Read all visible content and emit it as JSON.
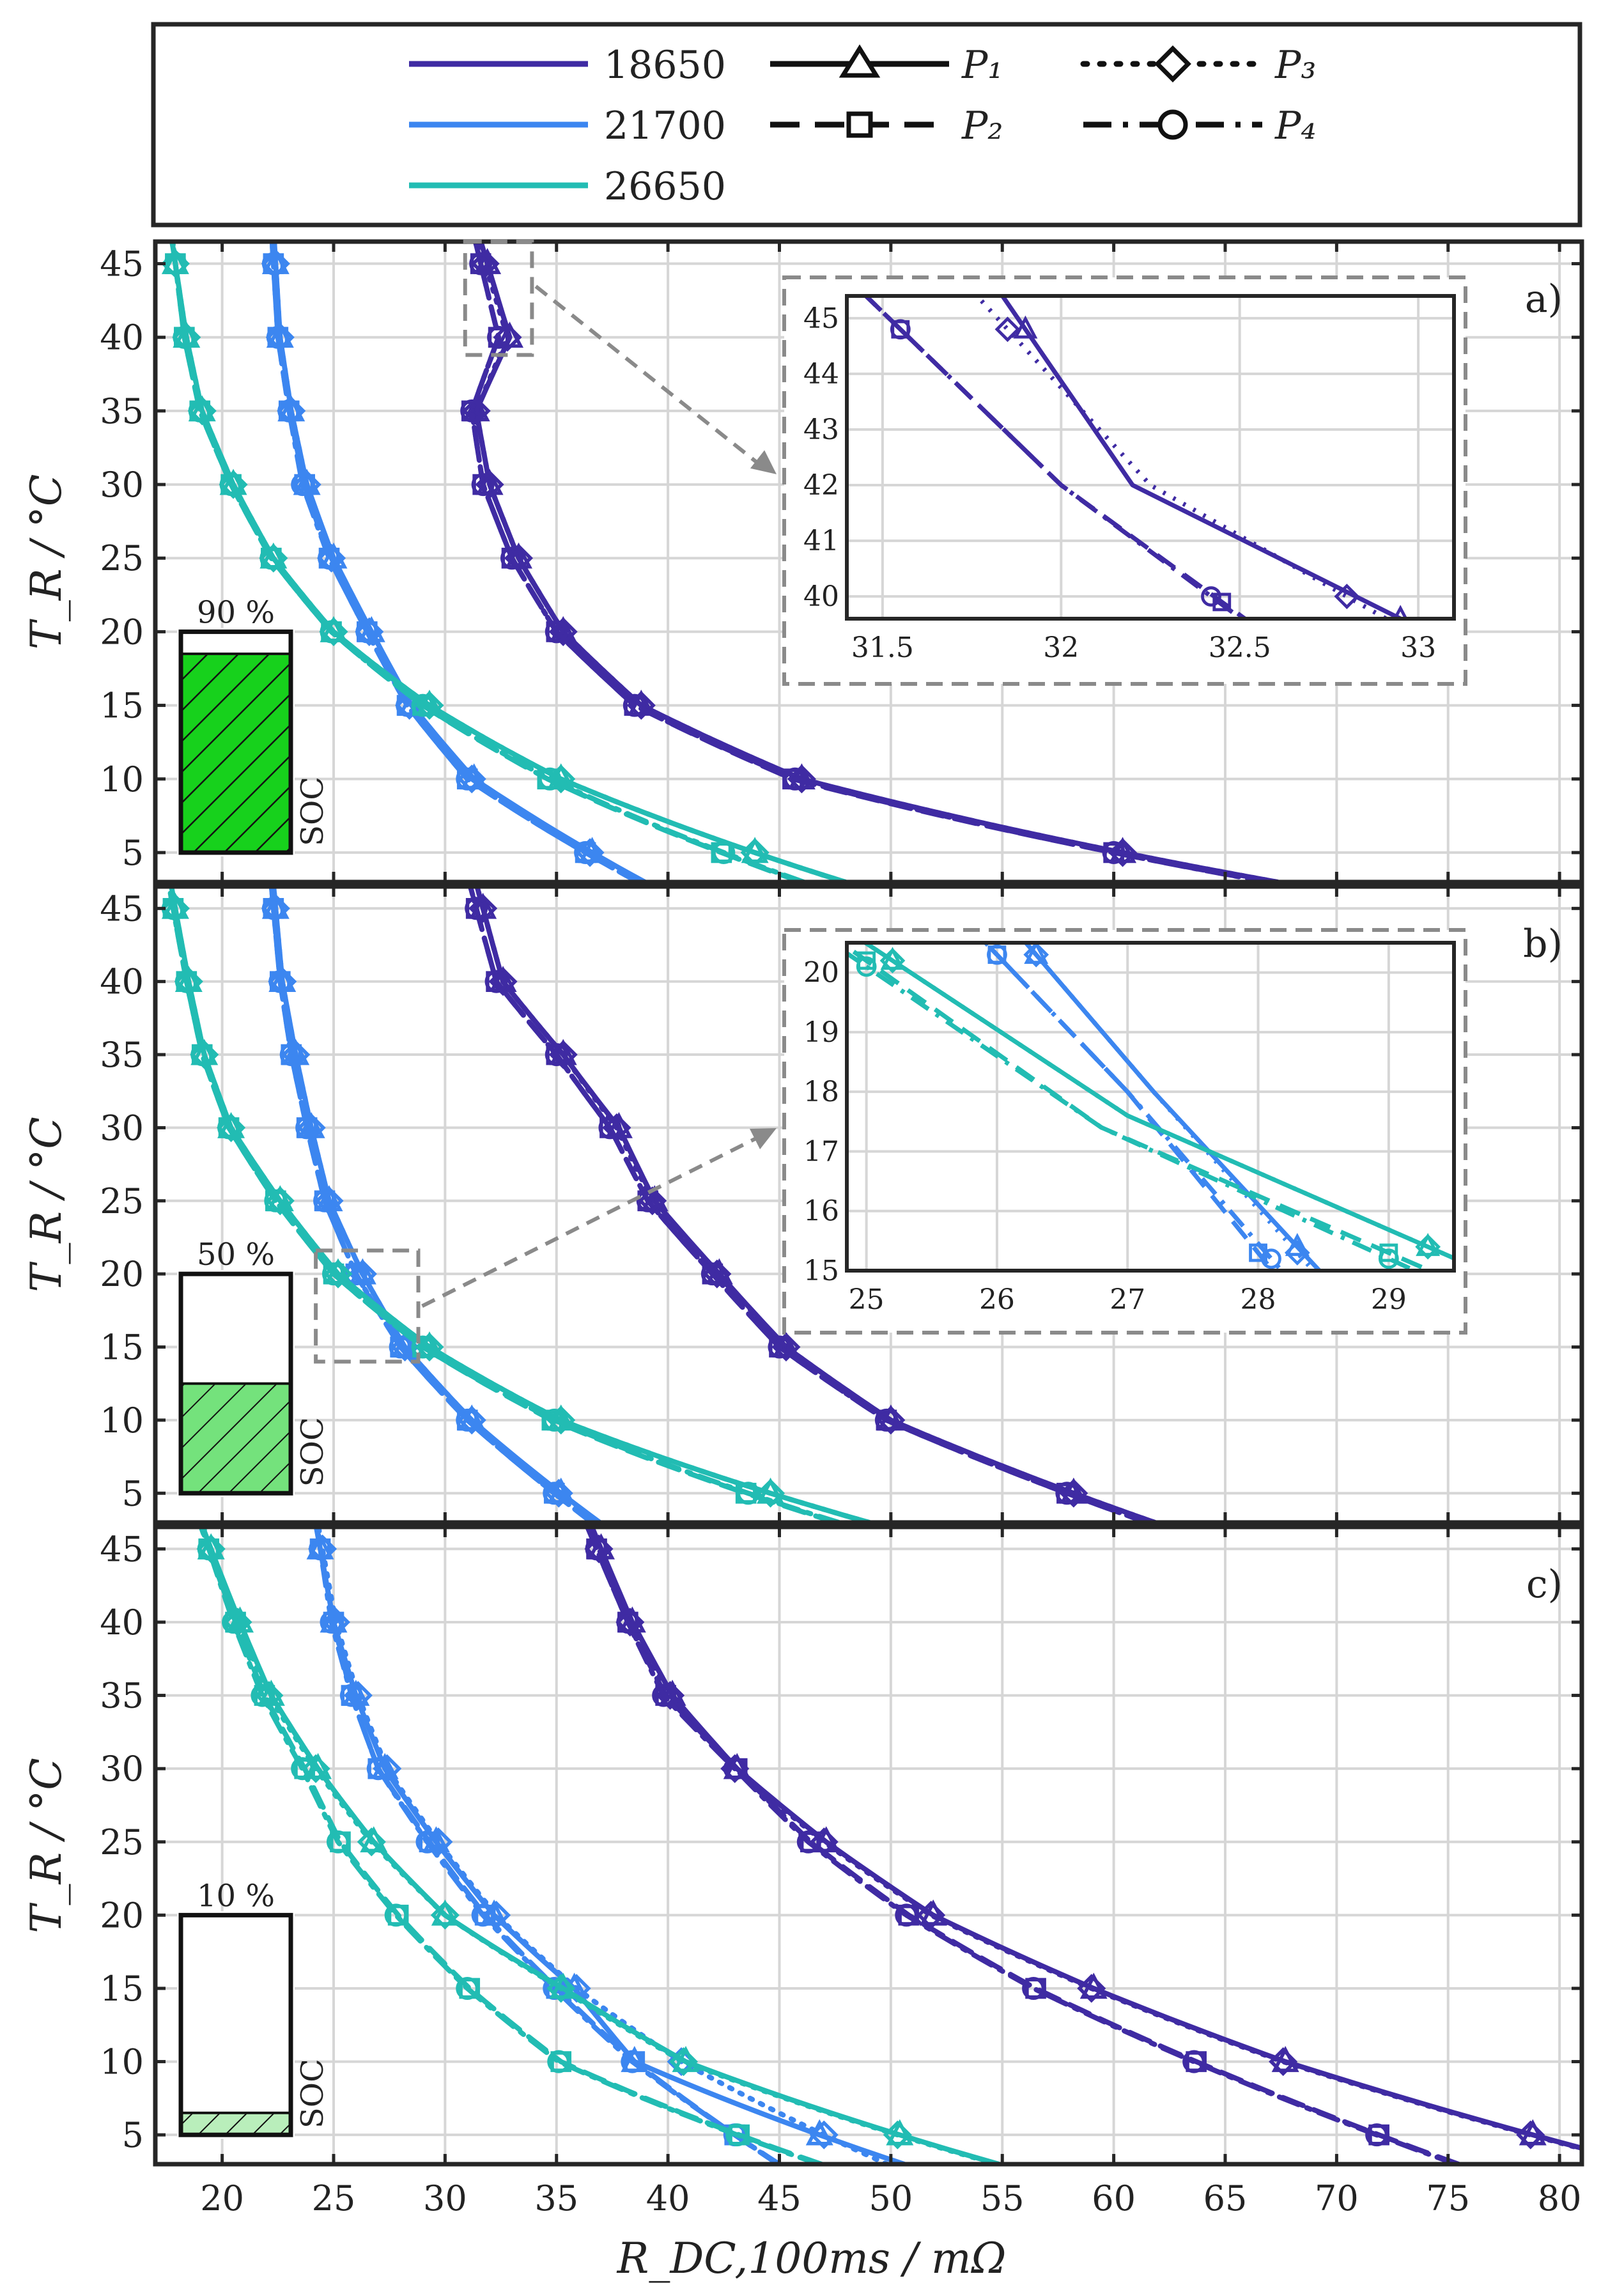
{
  "legend": {
    "cells": [
      {
        "name": "18650",
        "color": "#3f2ba3"
      },
      {
        "name": "21700",
        "color": "#3c86f0"
      },
      {
        "name": "26650",
        "color": "#22bcb3"
      }
    ],
    "profiles": [
      {
        "name": "P₁",
        "style": "solid",
        "marker": "triangle"
      },
      {
        "name": "P₂",
        "style": "dashed",
        "marker": "square"
      },
      {
        "name": "P₃",
        "style": "dotted",
        "marker": "diamond"
      },
      {
        "name": "P₄",
        "style": "dashdot",
        "marker": "circle"
      }
    ]
  },
  "axes": {
    "xlabel": "R_DC,100ms / mΩ",
    "ylabel": "T_R / °C",
    "xlim": [
      17,
      81
    ],
    "ylim": [
      3,
      46.5
    ],
    "xticks": [
      "20",
      "25",
      "30",
      "35",
      "40",
      "45",
      "50",
      "55",
      "60",
      "65",
      "70",
      "75",
      "80"
    ],
    "yticks": [
      "5",
      "10",
      "15",
      "20",
      "25",
      "30",
      "35",
      "40",
      "45"
    ]
  },
  "chart_data": [
    {
      "type": "line",
      "panel": "a)",
      "soc": "90 %",
      "soc_fraction": 0.9,
      "soc_label": "SOC",
      "temperatures": [
        5,
        10,
        15,
        20,
        25,
        30,
        35,
        40,
        45
      ],
      "series": [
        {
          "name": "18650",
          "profiles": {
            "P1": [
              60.4,
              46.0,
              38.8,
              35.3,
              33.3,
              32.0,
              31.4,
              32.9,
              31.9
            ],
            "P2": [
              60.0,
              45.6,
              38.5,
              35.0,
              33.0,
              31.7,
              31.2,
              32.4,
              31.6
            ],
            "P3": [
              60.4,
              46.0,
              38.8,
              35.3,
              33.3,
              32.0,
              31.4,
              32.8,
              31.8
            ],
            "P4": [
              60.0,
              45.7,
              38.5,
              35.0,
              33.0,
              31.7,
              31.2,
              32.4,
              31.6
            ]
          }
        },
        {
          "name": "21700",
          "profiles": {
            "P1": [
              36.6,
              31.3,
              28.5,
              26.7,
              25.0,
              23.8,
              23.1,
              22.6,
              22.4
            ],
            "P2": [
              36.3,
              31.0,
              28.3,
              26.5,
              24.8,
              23.7,
              23.0,
              22.5,
              22.3
            ],
            "P3": [
              36.5,
              31.2,
              28.4,
              26.6,
              24.9,
              23.8,
              23.1,
              22.6,
              22.4
            ],
            "P4": [
              36.3,
              31.0,
              28.3,
              26.5,
              24.8,
              23.6,
              23.0,
              22.5,
              22.3
            ]
          }
        },
        {
          "name": "26650",
          "profiles": {
            "P1": [
              43.9,
              35.2,
              29.3,
              25.0,
              22.3,
              20.5,
              19.1,
              18.4,
              17.9
            ],
            "P2": [
              42.4,
              34.6,
              29.0,
              24.9,
              22.2,
              20.4,
              19.0,
              18.3,
              17.9
            ],
            "P3": [
              43.9,
              35.2,
              29.3,
              25.0,
              22.3,
              20.5,
              19.1,
              18.4,
              17.9
            ],
            "P4": [
              42.5,
              34.7,
              29.0,
              24.9,
              22.2,
              20.4,
              19.0,
              18.3,
              17.9
            ]
          }
        }
      ],
      "inset": {
        "xlim": [
          31.4,
          33.1
        ],
        "ylim": [
          39.6,
          45.4
        ],
        "xticks": [
          "31.5",
          "32",
          "32.5",
          "33"
        ],
        "yticks": [
          "40",
          "41",
          "42",
          "43",
          "44",
          "45"
        ],
        "series": [
          {
            "name": "18650",
            "profile": "P1",
            "x": [
              31.9,
              32.2,
              32.95
            ],
            "y": [
              44.8,
              42.0,
              39.6
            ]
          },
          {
            "name": "18650",
            "profile": "P3",
            "x": [
              31.85,
              32.25,
              32.8
            ],
            "y": [
              44.8,
              42.0,
              40.0
            ]
          },
          {
            "name": "18650",
            "profile": "P2",
            "x": [
              31.55,
              32.0,
              32.45
            ],
            "y": [
              44.8,
              42.0,
              39.9
            ]
          },
          {
            "name": "18650",
            "profile": "P4",
            "x": [
              31.55,
              32.0,
              32.42
            ],
            "y": [
              44.8,
              42.0,
              40.0
            ]
          }
        ]
      }
    },
    {
      "type": "line",
      "panel": "b)",
      "soc": "50 %",
      "soc_fraction": 0.5,
      "soc_label": "SOC",
      "temperatures": [
        5,
        10,
        15,
        20,
        25,
        30,
        35,
        40,
        45
      ],
      "series": [
        {
          "name": "18650",
          "profiles": {
            "P1": [
              58.2,
              50.0,
              45.3,
              42.3,
              39.4,
              37.8,
              35.3,
              32.6,
              31.7
            ],
            "P2": [
              57.9,
              49.8,
              45.0,
              42.0,
              39.1,
              37.4,
              35.0,
              32.3,
              31.4
            ],
            "P3": [
              58.2,
              50.0,
              45.3,
              42.2,
              39.3,
              37.7,
              35.3,
              32.6,
              31.7
            ],
            "P4": [
              57.9,
              49.8,
              45.0,
              42.0,
              39.1,
              37.4,
              35.0,
              32.3,
              31.4
            ]
          }
        },
        {
          "name": "21700",
          "profiles": {
            "P1": [
              35.2,
              31.2,
              28.2,
              26.3,
              24.8,
              24.0,
              23.3,
              22.7,
              22.4
            ],
            "P2": [
              34.9,
              31.0,
              28.0,
              26.0,
              24.6,
              23.8,
              23.1,
              22.6,
              22.3
            ],
            "P3": [
              35.1,
              31.2,
              28.2,
              26.3,
              24.8,
              24.0,
              23.3,
              22.7,
              22.4
            ],
            "P4": [
              34.9,
              31.0,
              28.0,
              26.0,
              24.6,
              23.8,
              23.1,
              22.6,
              22.3
            ]
          }
        },
        {
          "name": "26650",
          "profiles": {
            "P1": [
              44.6,
              35.2,
              29.3,
              25.2,
              22.6,
              20.4,
              19.2,
              18.5,
              17.9
            ],
            "P2": [
              43.5,
              34.8,
              29.0,
              25.0,
              22.4,
              20.3,
              19.1,
              18.4,
              17.8
            ],
            "P3": [
              44.6,
              35.2,
              29.3,
              25.2,
              22.6,
              20.4,
              19.2,
              18.5,
              17.9
            ],
            "P4": [
              43.6,
              34.9,
              29.0,
              25.0,
              22.4,
              20.3,
              19.1,
              18.4,
              17.8
            ]
          }
        }
      ],
      "inset": {
        "xlim": [
          24.85,
          29.5
        ],
        "ylim": [
          15,
          20.5
        ],
        "xticks": [
          "25",
          "26",
          "27",
          "28",
          "29"
        ],
        "yticks": [
          "15",
          "16",
          "17",
          "18",
          "19",
          "20"
        ],
        "series": [
          {
            "name": "21700",
            "profile": "P1",
            "x": [
              26.3,
              27.2,
              28.3
            ],
            "y": [
              20.3,
              18.0,
              15.4
            ]
          },
          {
            "name": "21700",
            "profile": "P2",
            "x": [
              26.0,
              27.0,
              28.0
            ],
            "y": [
              20.3,
              18.0,
              15.3
            ]
          },
          {
            "name": "21700",
            "profile": "P3",
            "x": [
              26.3,
              27.2,
              28.3
            ],
            "y": [
              20.3,
              18.0,
              15.3
            ]
          },
          {
            "name": "21700",
            "profile": "P4",
            "x": [
              26.0,
              27.0,
              28.1
            ],
            "y": [
              20.3,
              18.0,
              15.2
            ]
          },
          {
            "name": "26650",
            "profile": "P1",
            "x": [
              25.2,
              27.0,
              29.3
            ],
            "y": [
              20.2,
              17.6,
              15.4
            ]
          },
          {
            "name": "26650",
            "profile": "P2",
            "x": [
              25.0,
              26.8,
              29.0
            ],
            "y": [
              20.2,
              17.4,
              15.3
            ]
          },
          {
            "name": "26650",
            "profile": "P3",
            "x": [
              25.2,
              27.0,
              29.3
            ],
            "y": [
              20.2,
              17.6,
              15.4
            ]
          },
          {
            "name": "26650",
            "profile": "P4",
            "x": [
              25.0,
              26.8,
              29.0
            ],
            "y": [
              20.1,
              17.4,
              15.2
            ]
          }
        ]
      }
    },
    {
      "type": "line",
      "panel": "c)",
      "soc": "10 %",
      "soc_fraction": 0.1,
      "soc_label": "SOC",
      "temperatures": [
        5,
        10,
        15,
        20,
        25,
        30,
        35,
        40,
        45
      ],
      "series": [
        {
          "name": "18650",
          "profiles": {
            "P1": [
              78.8,
              67.7,
              59.1,
              51.9,
              47.1,
              43.1,
              40.2,
              38.4,
              37.0
            ],
            "P2": [
              71.9,
              63.7,
              56.5,
              50.8,
              46.4,
              43.1,
              39.9,
              38.2,
              36.8
            ],
            "P3": [
              78.7,
              67.6,
              59.0,
              51.8,
              47.0,
              43.0,
              40.1,
              38.3,
              36.9
            ],
            "P4": [
              71.8,
              63.6,
              56.4,
              50.7,
              46.3,
              43.0,
              39.8,
              38.2,
              36.8
            ]
          }
        },
        {
          "name": "21700",
          "profiles": {
            "P1": [
              46.8,
              38.5,
              35.8,
              32.2,
              29.6,
              27.3,
              26.0,
              25.0,
              24.4
            ],
            "P2": [
              43.0,
              38.5,
              35.0,
              31.8,
              29.3,
              27.0,
              25.8,
              25.0,
              24.4
            ],
            "P3": [
              47.0,
              40.6,
              35.9,
              32.3,
              29.7,
              27.4,
              26.1,
              25.1,
              24.5
            ],
            "P4": [
              43.0,
              38.4,
              34.9,
              31.7,
              29.2,
              27.0,
              25.8,
              24.9,
              24.4
            ]
          }
        },
        {
          "name": "26650",
          "profiles": {
            "P1": [
              50.4,
              40.8,
              35.3,
              30.0,
              26.8,
              24.3,
              22.2,
              20.8,
              19.5
            ],
            "P2": [
              43.2,
              35.2,
              31.1,
              27.9,
              25.3,
              23.7,
              21.9,
              20.6,
              19.4
            ],
            "P3": [
              50.3,
              40.7,
              35.2,
              30.0,
              26.7,
              24.2,
              22.1,
              20.7,
              19.5
            ],
            "P4": [
              43.1,
              35.1,
              31.0,
              27.8,
              25.2,
              23.6,
              21.8,
              20.5,
              19.4
            ]
          }
        }
      ]
    }
  ]
}
